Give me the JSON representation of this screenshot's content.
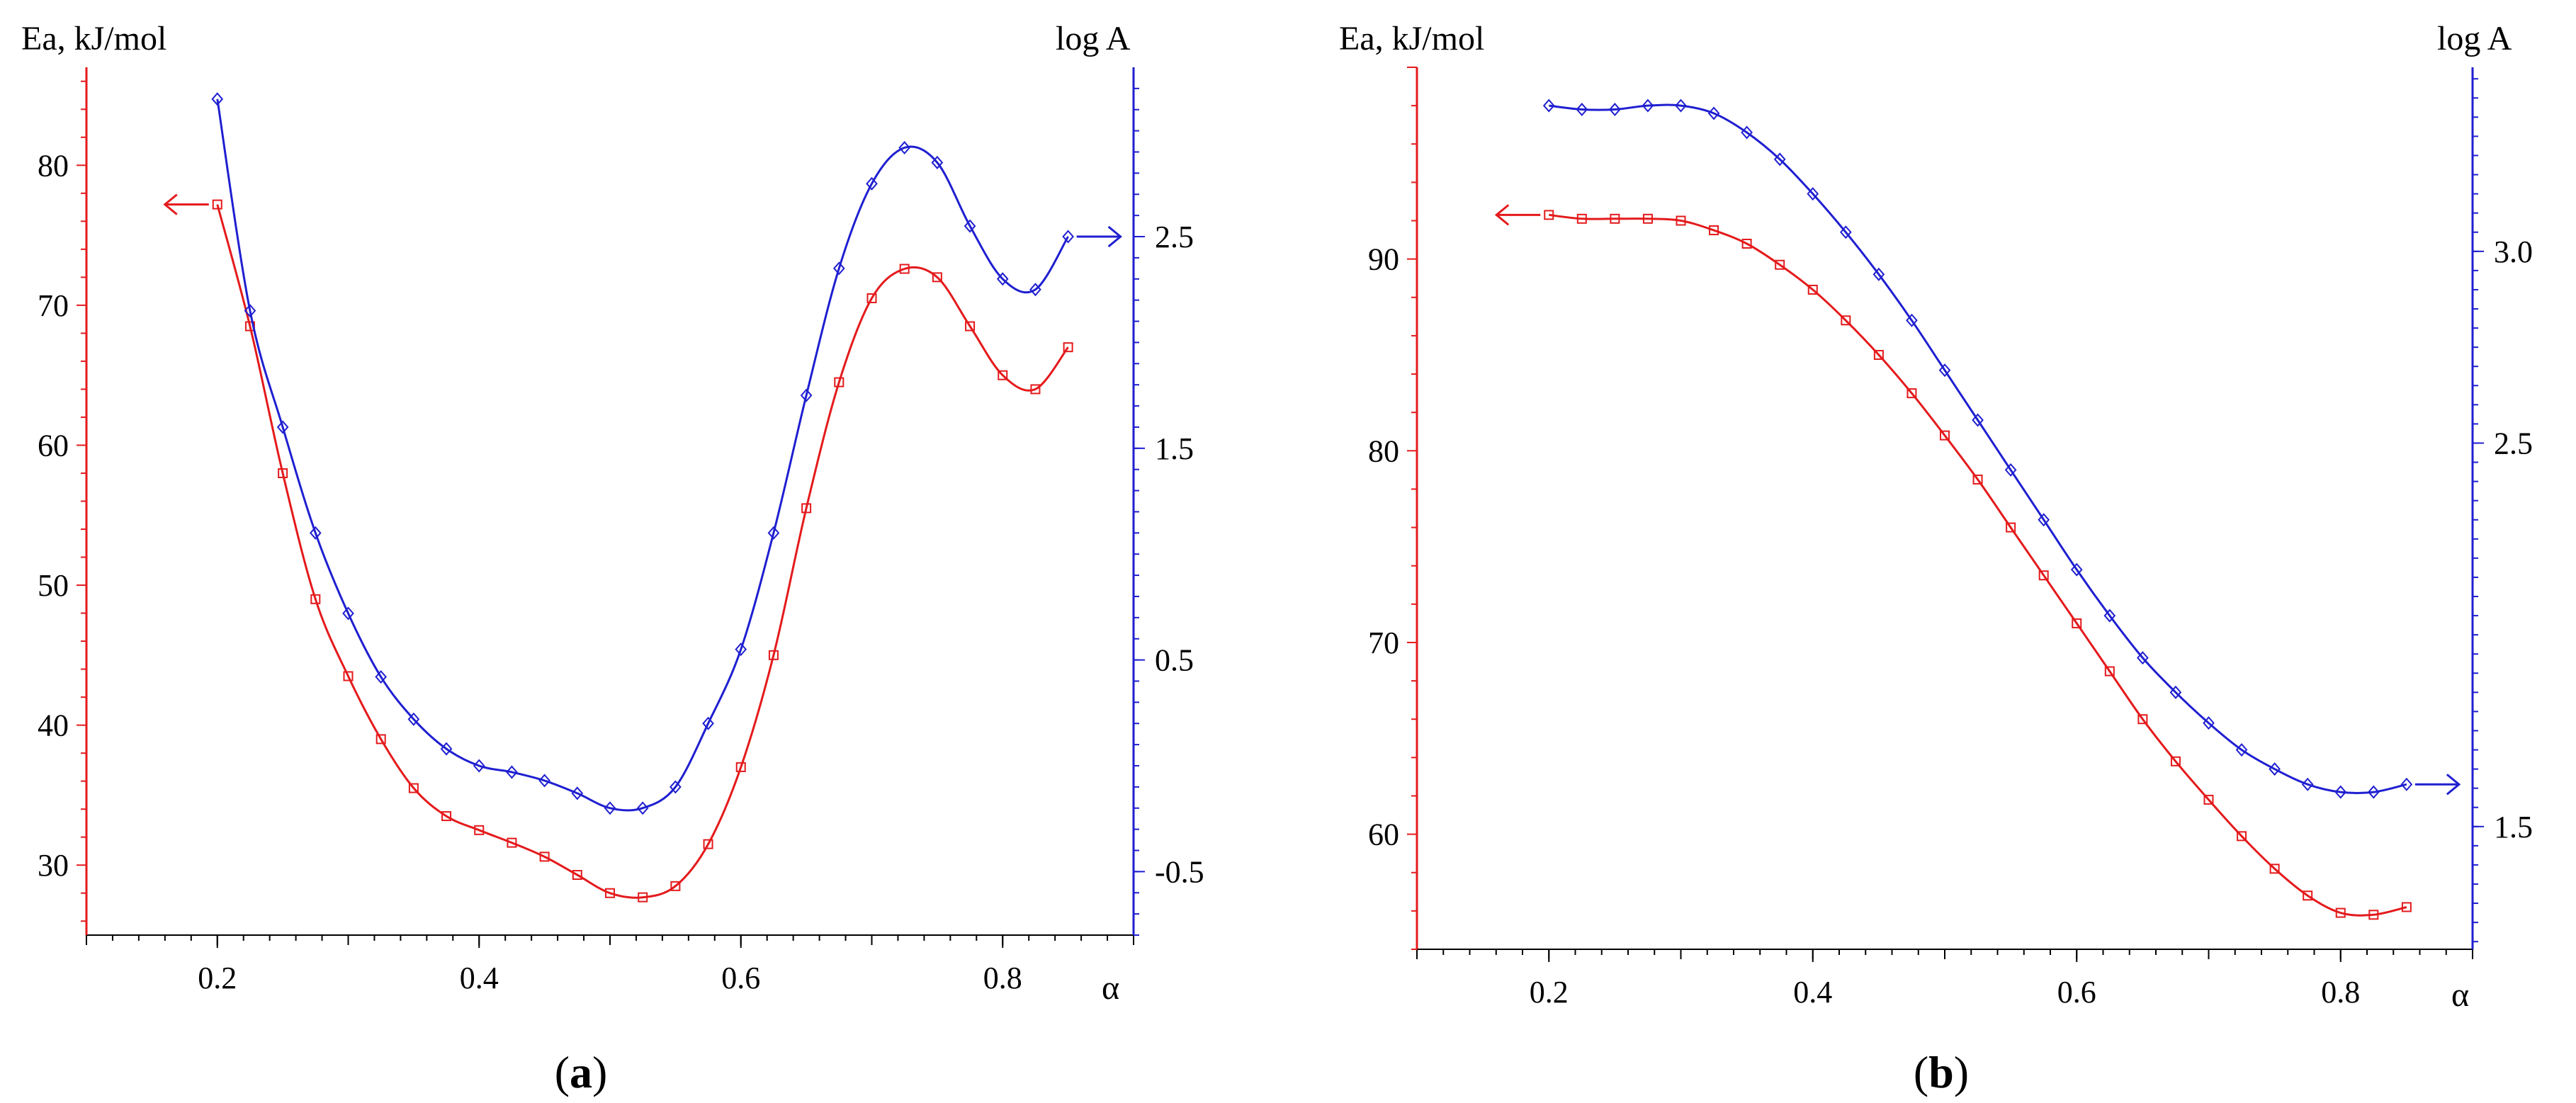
{
  "chart_data": [
    {
      "type": "line",
      "panel_label": "a",
      "left_axis_label": "Ea, kJ/mol",
      "right_axis_label": "log A",
      "xlabel": "α",
      "xlim": [
        0.1,
        0.9
      ],
      "x_ticks": [
        "0.2",
        "0.4",
        "0.6",
        "0.8"
      ],
      "left_ylim": [
        25,
        87
      ],
      "left_ticks": [
        "30",
        "40",
        "50",
        "60",
        "70",
        "80"
      ],
      "right_ylim": [
        -0.8,
        3.3
      ],
      "right_ticks": [
        "-0.5",
        "0.5",
        "1.5",
        "2.5"
      ],
      "left_axis_color": "#e41a1c",
      "right_axis_color": "#1f1fd1",
      "series": [
        {
          "name": "Ea",
          "axis": "left",
          "color": "#e41a1c",
          "marker": "square",
          "arrow": "left",
          "x": [
            0.2,
            0.225,
            0.25,
            0.275,
            0.3,
            0.325,
            0.35,
            0.375,
            0.4,
            0.425,
            0.45,
            0.475,
            0.5,
            0.525,
            0.55,
            0.575,
            0.6,
            0.625,
            0.65,
            0.675,
            0.7,
            0.725,
            0.75,
            0.775,
            0.8,
            0.825,
            0.85
          ],
          "values": [
            77.2,
            68.5,
            58.0,
            49.0,
            43.5,
            39.0,
            35.5,
            33.5,
            32.5,
            31.6,
            30.6,
            29.3,
            28.0,
            27.7,
            28.5,
            31.5,
            37.0,
            45.0,
            55.5,
            64.5,
            70.5,
            72.6,
            72.0,
            68.5,
            65.0,
            64.0,
            67.0
          ]
        },
        {
          "name": "log A",
          "axis": "right",
          "color": "#1f1fd1",
          "marker": "diamond",
          "arrow": "right",
          "x": [
            0.2,
            0.225,
            0.25,
            0.275,
            0.3,
            0.325,
            0.35,
            0.375,
            0.4,
            0.425,
            0.45,
            0.475,
            0.5,
            0.525,
            0.55,
            0.575,
            0.6,
            0.625,
            0.65,
            0.675,
            0.7,
            0.725,
            0.75,
            0.775,
            0.8,
            0.825,
            0.85
          ],
          "values": [
            3.15,
            2.15,
            1.6,
            1.1,
            0.72,
            0.42,
            0.22,
            0.08,
            0.0,
            -0.03,
            -0.07,
            -0.13,
            -0.2,
            -0.2,
            -0.1,
            0.2,
            0.55,
            1.1,
            1.75,
            2.35,
            2.75,
            2.92,
            2.85,
            2.55,
            2.3,
            2.25,
            2.5
          ]
        }
      ]
    },
    {
      "type": "line",
      "panel_label": "b",
      "left_axis_label": "Ea, kJ/mol",
      "right_axis_label": "log A",
      "xlabel": "α",
      "xlim": [
        0.1,
        0.9
      ],
      "x_ticks": [
        "0.2",
        "0.4",
        "0.6",
        "0.8"
      ],
      "left_ylim": [
        54,
        100
      ],
      "left_ticks": [
        "60",
        "70",
        "80",
        "90"
      ],
      "right_ylim": [
        1.18,
        3.48
      ],
      "right_ticks": [
        "1.5",
        "2.5",
        "3.0"
      ],
      "left_axis_color": "#e41a1c",
      "right_axis_color": "#1f1fd1",
      "series": [
        {
          "name": "Ea",
          "axis": "left",
          "color": "#e41a1c",
          "marker": "square",
          "arrow": "left",
          "x": [
            0.2,
            0.225,
            0.25,
            0.275,
            0.3,
            0.325,
            0.35,
            0.375,
            0.4,
            0.425,
            0.45,
            0.475,
            0.5,
            0.525,
            0.55,
            0.575,
            0.6,
            0.625,
            0.65,
            0.675,
            0.7,
            0.725,
            0.75,
            0.775,
            0.8,
            0.825,
            0.85
          ],
          "values": [
            92.3,
            92.1,
            92.1,
            92.1,
            92.0,
            91.5,
            90.8,
            89.7,
            88.4,
            86.8,
            85.0,
            83.0,
            80.8,
            78.5,
            76.0,
            73.5,
            71.0,
            68.5,
            66.0,
            63.8,
            61.8,
            59.9,
            58.2,
            56.8,
            55.9,
            55.8,
            56.2
          ]
        },
        {
          "name": "log A",
          "axis": "right",
          "color": "#1f1fd1",
          "marker": "diamond",
          "arrow": "right",
          "x": [
            0.2,
            0.225,
            0.25,
            0.275,
            0.3,
            0.325,
            0.35,
            0.375,
            0.4,
            0.425,
            0.45,
            0.475,
            0.5,
            0.525,
            0.55,
            0.575,
            0.6,
            0.625,
            0.65,
            0.675,
            0.7,
            0.725,
            0.75,
            0.775,
            0.8,
            0.825,
            0.85
          ],
          "values": [
            3.38,
            3.37,
            3.37,
            3.38,
            3.38,
            3.36,
            3.31,
            3.24,
            3.15,
            3.05,
            2.94,
            2.82,
            2.69,
            2.56,
            2.43,
            2.3,
            2.17,
            2.05,
            1.94,
            1.85,
            1.77,
            1.7,
            1.65,
            1.61,
            1.59,
            1.59,
            1.61
          ]
        }
      ]
    }
  ]
}
